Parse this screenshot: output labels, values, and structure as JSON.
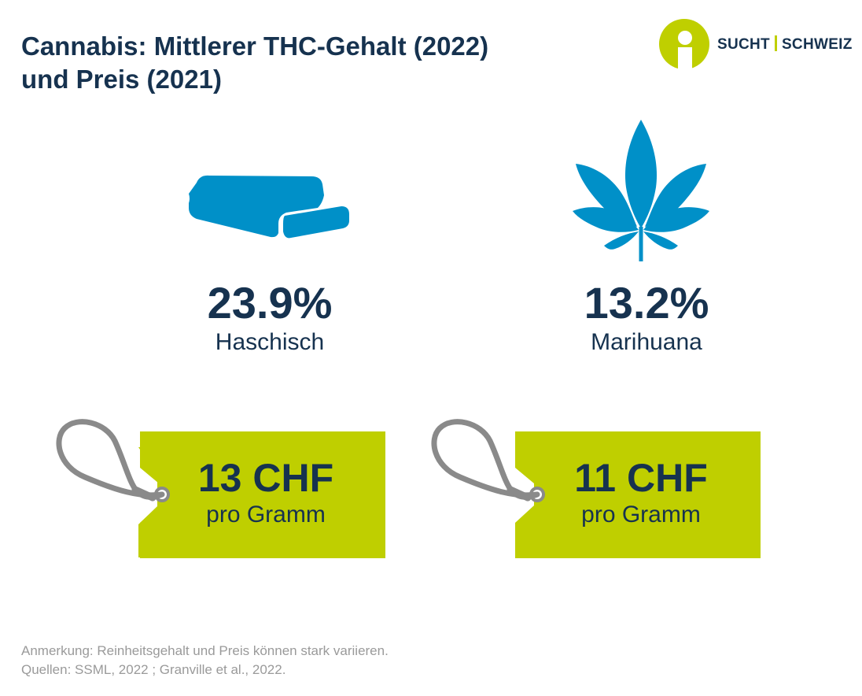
{
  "title": {
    "line1": "Cannabis: Mittlerer THC-Gehalt (2022)",
    "line2": "und Preis (2021)"
  },
  "logo": {
    "part1": "SUCHT",
    "part2": "SCHWEIZ",
    "mark_icon": "info-person-icon"
  },
  "colors": {
    "navy": "#16324f",
    "blue": "#0090c8",
    "lime": "#bfcf00",
    "gray_string": "#8a8a8a",
    "footer_gray": "#9a9a9a"
  },
  "products": [
    {
      "icon": "hashish-block-icon",
      "thc": "23.9%",
      "name": "Haschisch",
      "price": "13 CHF",
      "unit": "pro Gramm"
    },
    {
      "icon": "cannabis-leaf-icon",
      "thc": "13.2%",
      "name": "Marihuana",
      "price": "11 CHF",
      "unit": "pro Gramm"
    }
  ],
  "footer": {
    "note": "Anmerkung: Reinheitsgehalt und Preis können stark variieren.",
    "sources": "Quellen: SSML, 2022 ; Granville et al., 2022."
  }
}
